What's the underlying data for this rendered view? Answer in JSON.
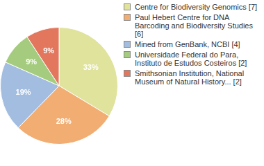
{
  "chart_data": {
    "type": "pie",
    "categories": [
      "Centre for Biodiversity Genomics [7]",
      "Paul Hebert Centre for DNA Barcoding and Biodiversity Studies [6]",
      "Mined from GenBank, NCBI [4]",
      "Universidade Federal do Para, Instituto de Estudos Costeiros [2]",
      "Smithsonian Institution, National Museum of Natural History... [2]"
    ],
    "values": [
      33,
      28,
      19,
      9,
      9
    ],
    "value_labels": [
      "33%",
      "28%",
      "19%",
      "9%",
      "9%"
    ],
    "colors": [
      "#dfe39c",
      "#f1ad72",
      "#a3bde1",
      "#a5cc7e",
      "#e2775d"
    ],
    "data_labels": true,
    "legend": "right"
  }
}
